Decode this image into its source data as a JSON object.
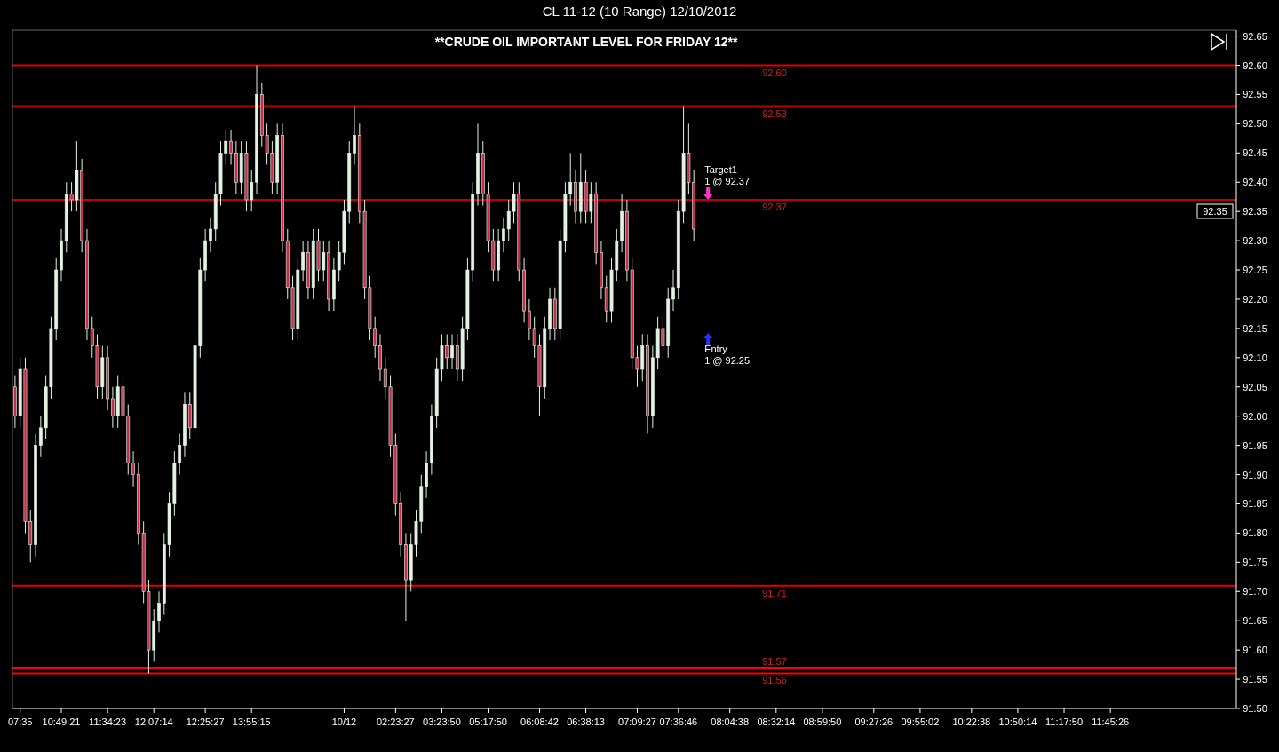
{
  "chart_data": {
    "type": "candlestick",
    "title": "CL 11-12 (10 Range)  12/10/2012",
    "subtitle": "**CRUDE OIL IMPORTANT LEVEL FOR FRIDAY 12**",
    "categories": [
      null,
      "07:35",
      null,
      null,
      null,
      null,
      null,
      null,
      null,
      "10:49:21",
      null,
      null,
      null,
      null,
      null,
      null,
      null,
      null,
      "11:34:23",
      null,
      null,
      null,
      null,
      null,
      null,
      null,
      null,
      "12:07:14",
      null,
      null,
      null,
      null,
      null,
      null,
      null,
      null,
      null,
      "12:25:27",
      null,
      null,
      null,
      null,
      null,
      null,
      null,
      null,
      "13:55:15",
      null,
      null,
      null,
      null,
      null,
      null,
      null,
      null,
      null,
      null,
      null,
      null,
      null,
      null,
      null,
      null,
      null,
      "10/12",
      null,
      null,
      null,
      null,
      null,
      null,
      null,
      null,
      null,
      "02:23:27",
      null,
      null,
      null,
      null,
      null,
      null,
      null,
      null,
      "03:23:50",
      null,
      null,
      null,
      null,
      null,
      null,
      null,
      null,
      "05:17:50",
      null,
      null,
      null,
      null,
      null,
      null,
      null,
      null,
      null,
      "06:08:42",
      null,
      null,
      null,
      null,
      null,
      null,
      null,
      null,
      "06:38:13",
      null,
      null,
      null,
      null,
      null,
      null,
      null,
      null,
      null,
      "07:09:27",
      null,
      null,
      null,
      null,
      null,
      null,
      null,
      "07:36:46",
      null,
      null,
      null,
      null,
      null,
      null,
      null,
      null,
      null,
      "08:04:38",
      null,
      null,
      null,
      null,
      null,
      null,
      null,
      null,
      "08:32:14",
      null,
      null,
      null,
      null,
      null,
      null,
      null,
      null,
      "08:59:50",
      null,
      null,
      null,
      null,
      null,
      null,
      null,
      null,
      null,
      "09:27:26",
      null,
      null,
      null,
      null,
      null,
      null,
      null,
      null,
      "09:55:02",
      null,
      null,
      null,
      null,
      null,
      null,
      null,
      null,
      null,
      "10:22:38",
      null,
      null,
      null,
      null,
      null,
      null,
      null,
      null,
      "10:50:14",
      null,
      null,
      null,
      null,
      null,
      null,
      null,
      null,
      "11:17:50",
      null,
      null,
      null,
      null,
      null,
      null,
      null,
      null,
      "11:45:26",
      null,
      null,
      null,
      null,
      null,
      null,
      null,
      null,
      null,
      null,
      null,
      null,
      null,
      null,
      null,
      null,
      null,
      null,
      null,
      null,
      null,
      null,
      null,
      null
    ],
    "ohlc": [
      [
        92.05,
        92.07,
        91.98,
        92.0
      ],
      [
        92.0,
        92.1,
        91.98,
        92.08
      ],
      [
        92.08,
        92.1,
        91.8,
        91.82
      ],
      [
        91.82,
        91.84,
        91.75,
        91.78
      ],
      [
        91.78,
        91.97,
        91.76,
        91.95
      ],
      [
        91.95,
        92.0,
        91.93,
        91.98
      ],
      [
        91.98,
        92.07,
        91.96,
        92.05
      ],
      [
        92.05,
        92.17,
        92.03,
        92.15
      ],
      [
        92.15,
        92.27,
        92.13,
        92.25
      ],
      [
        92.25,
        92.32,
        92.23,
        92.3
      ],
      [
        92.3,
        92.4,
        92.28,
        92.38
      ],
      [
        92.38,
        92.4,
        92.35,
        92.37
      ],
      [
        92.37,
        92.47,
        92.35,
        92.42
      ],
      [
        92.42,
        92.44,
        92.28,
        92.3
      ],
      [
        92.3,
        92.32,
        92.13,
        92.15
      ],
      [
        92.15,
        92.17,
        92.1,
        92.12
      ],
      [
        92.12,
        92.14,
        92.03,
        92.05
      ],
      [
        92.05,
        92.12,
        92.03,
        92.1
      ],
      [
        92.1,
        92.12,
        92.01,
        92.03
      ],
      [
        92.03,
        92.05,
        91.98,
        92.0
      ],
      [
        92.0,
        92.07,
        91.98,
        92.05
      ],
      [
        92.05,
        92.07,
        91.98,
        92.0
      ],
      [
        92.0,
        92.02,
        91.9,
        91.92
      ],
      [
        91.92,
        91.94,
        91.88,
        91.9
      ],
      [
        91.9,
        91.92,
        91.78,
        91.8
      ],
      [
        91.8,
        91.82,
        91.68,
        91.7
      ],
      [
        91.7,
        91.72,
        91.56,
        91.6
      ],
      [
        91.6,
        91.67,
        91.58,
        91.65
      ],
      [
        91.65,
        91.7,
        91.63,
        91.68
      ],
      [
        91.68,
        91.8,
        91.66,
        91.78
      ],
      [
        91.78,
        91.87,
        91.76,
        91.85
      ],
      [
        91.85,
        91.94,
        91.83,
        91.92
      ],
      [
        91.92,
        91.97,
        91.9,
        91.95
      ],
      [
        91.95,
        92.04,
        91.93,
        92.02
      ],
      [
        92.02,
        92.04,
        91.96,
        91.98
      ],
      [
        91.98,
        92.14,
        91.96,
        92.12
      ],
      [
        92.12,
        92.27,
        92.1,
        92.25
      ],
      [
        92.25,
        92.32,
        92.23,
        92.3
      ],
      [
        92.3,
        92.34,
        92.28,
        92.32
      ],
      [
        92.32,
        92.4,
        92.3,
        92.38
      ],
      [
        92.38,
        92.47,
        92.36,
        92.45
      ],
      [
        92.45,
        92.49,
        92.43,
        92.47
      ],
      [
        92.47,
        92.49,
        92.43,
        92.45
      ],
      [
        92.45,
        92.47,
        92.38,
        92.4
      ],
      [
        92.4,
        92.47,
        92.38,
        92.45
      ],
      [
        92.45,
        92.47,
        92.35,
        92.37
      ],
      [
        92.37,
        92.42,
        92.35,
        92.4
      ],
      [
        92.4,
        92.6,
        92.38,
        92.55
      ],
      [
        92.55,
        92.57,
        92.46,
        92.48
      ],
      [
        92.48,
        92.5,
        92.43,
        92.45
      ],
      [
        92.45,
        92.47,
        92.38,
        92.4
      ],
      [
        92.4,
        92.5,
        92.38,
        92.48
      ],
      [
        92.48,
        92.5,
        92.28,
        92.3
      ],
      [
        92.3,
        92.32,
        92.2,
        92.22
      ],
      [
        92.22,
        92.24,
        92.13,
        92.15
      ],
      [
        92.15,
        92.27,
        92.13,
        92.25
      ],
      [
        92.25,
        92.3,
        92.23,
        92.28
      ],
      [
        92.28,
        92.3,
        92.2,
        92.22
      ],
      [
        92.22,
        92.32,
        92.2,
        92.3
      ],
      [
        92.3,
        92.32,
        92.23,
        92.25
      ],
      [
        92.25,
        92.3,
        92.23,
        92.28
      ],
      [
        92.28,
        92.3,
        92.18,
        92.2
      ],
      [
        92.2,
        92.27,
        92.18,
        92.25
      ],
      [
        92.25,
        92.3,
        92.23,
        92.28
      ],
      [
        92.28,
        92.37,
        92.26,
        92.35
      ],
      [
        92.35,
        92.47,
        92.33,
        92.45
      ],
      [
        92.45,
        92.53,
        92.43,
        92.48
      ],
      [
        92.48,
        92.5,
        92.33,
        92.35
      ],
      [
        92.35,
        92.37,
        92.2,
        92.22
      ],
      [
        92.22,
        92.24,
        92.13,
        92.15
      ],
      [
        92.15,
        92.17,
        92.1,
        92.12
      ],
      [
        92.12,
        92.14,
        92.06,
        92.08
      ],
      [
        92.08,
        92.1,
        92.03,
        92.05
      ],
      [
        92.05,
        92.07,
        91.93,
        91.95
      ],
      [
        91.95,
        91.97,
        91.83,
        91.85
      ],
      [
        91.85,
        91.87,
        91.76,
        91.78
      ],
      [
        91.78,
        91.8,
        91.65,
        91.72
      ],
      [
        91.72,
        91.8,
        91.7,
        91.78
      ],
      [
        91.78,
        91.84,
        91.76,
        91.82
      ],
      [
        91.82,
        91.9,
        91.8,
        91.88
      ],
      [
        91.88,
        91.94,
        91.86,
        91.92
      ],
      [
        91.92,
        92.02,
        91.9,
        92.0
      ],
      [
        92.0,
        92.1,
        91.98,
        92.08
      ],
      [
        92.08,
        92.14,
        92.06,
        92.12
      ],
      [
        92.12,
        92.14,
        92.08,
        92.1
      ],
      [
        92.1,
        92.14,
        92.08,
        92.12
      ],
      [
        92.12,
        92.14,
        92.06,
        92.08
      ],
      [
        92.08,
        92.17,
        92.06,
        92.15
      ],
      [
        92.15,
        92.27,
        92.13,
        92.25
      ],
      [
        92.25,
        92.4,
        92.23,
        92.38
      ],
      [
        92.38,
        92.5,
        92.36,
        92.45
      ],
      [
        92.45,
        92.47,
        92.36,
        92.38
      ],
      [
        92.38,
        92.4,
        92.28,
        92.3
      ],
      [
        92.3,
        92.32,
        92.23,
        92.25
      ],
      [
        92.25,
        92.32,
        92.23,
        92.3
      ],
      [
        92.3,
        92.34,
        92.28,
        92.32
      ],
      [
        92.32,
        92.37,
        92.3,
        92.35
      ],
      [
        92.35,
        92.4,
        92.33,
        92.38
      ],
      [
        92.38,
        92.4,
        92.23,
        92.25
      ],
      [
        92.25,
        92.27,
        92.16,
        92.18
      ],
      [
        92.18,
        92.2,
        92.13,
        92.15
      ],
      [
        92.15,
        92.17,
        92.1,
        92.12
      ],
      [
        92.12,
        92.14,
        92.0,
        92.05
      ],
      [
        92.05,
        92.17,
        92.03,
        92.15
      ],
      [
        92.15,
        92.22,
        92.13,
        92.2
      ],
      [
        92.2,
        92.22,
        92.13,
        92.15
      ],
      [
        92.15,
        92.32,
        92.13,
        92.3
      ],
      [
        92.3,
        92.4,
        92.28,
        92.38
      ],
      [
        92.38,
        92.45,
        92.36,
        92.4
      ],
      [
        92.4,
        92.42,
        92.33,
        92.35
      ],
      [
        92.35,
        92.45,
        92.33,
        92.4
      ],
      [
        92.4,
        92.42,
        92.33,
        92.35
      ],
      [
        92.35,
        92.4,
        92.33,
        92.38
      ],
      [
        92.38,
        92.4,
        92.26,
        92.28
      ],
      [
        92.28,
        92.3,
        92.2,
        92.22
      ],
      [
        92.22,
        92.24,
        92.16,
        92.18
      ],
      [
        92.18,
        92.27,
        92.16,
        92.25
      ],
      [
        92.25,
        92.32,
        92.23,
        92.3
      ],
      [
        92.3,
        92.38,
        92.28,
        92.35
      ],
      [
        92.35,
        92.37,
        92.23,
        92.25
      ],
      [
        92.25,
        92.27,
        92.08,
        92.1
      ],
      [
        92.1,
        92.12,
        92.05,
        92.08
      ],
      [
        92.08,
        92.14,
        92.06,
        92.12
      ],
      [
        92.12,
        92.14,
        91.97,
        92.0
      ],
      [
        92.0,
        92.12,
        91.98,
        92.1
      ],
      [
        92.1,
        92.17,
        92.08,
        92.15
      ],
      [
        92.15,
        92.17,
        92.1,
        92.12
      ],
      [
        92.12,
        92.22,
        92.1,
        92.2
      ],
      [
        92.2,
        92.25,
        92.18,
        92.22
      ],
      [
        92.22,
        92.37,
        92.2,
        92.35
      ],
      [
        92.35,
        92.53,
        92.33,
        92.45
      ],
      [
        92.45,
        92.5,
        92.38,
        92.4
      ],
      [
        92.4,
        92.42,
        92.3,
        92.32
      ],
      null,
      null,
      null,
      null,
      null,
      null,
      null,
      null,
      null,
      null,
      null,
      null,
      null,
      null,
      null,
      null,
      null,
      null,
      null,
      null,
      null,
      null,
      null,
      null,
      null,
      null,
      null,
      null,
      null,
      null,
      null,
      null,
      null,
      null,
      null,
      null,
      null,
      null,
      null,
      null,
      null,
      null,
      null,
      null,
      null,
      null,
      null,
      null,
      null,
      null,
      null,
      null,
      null,
      null,
      null,
      null,
      null,
      null,
      null,
      null,
      null,
      null,
      null,
      null,
      null,
      null,
      null,
      null,
      null,
      null,
      null,
      null,
      null,
      null,
      null,
      null,
      null,
      null,
      null,
      null,
      null,
      null,
      null,
      null,
      null,
      null,
      null,
      null,
      null,
      null,
      null,
      null,
      null,
      null,
      null,
      null,
      null,
      null,
      null,
      null,
      null,
      null,
      null,
      null,
      null
    ],
    "ylim": [
      91.5,
      92.66
    ],
    "yticks": [
      {
        "value": 91.5,
        "label": "91.50"
      },
      {
        "value": 91.55,
        "label": "91.55"
      },
      {
        "value": 91.6,
        "label": "91.60"
      },
      {
        "value": 91.65,
        "label": "91.65"
      },
      {
        "value": 91.7,
        "label": "91.70"
      },
      {
        "value": 91.75,
        "label": "91.75"
      },
      {
        "value": 91.8,
        "label": "91.80"
      },
      {
        "value": 91.85,
        "label": "91.85"
      },
      {
        "value": 91.9,
        "label": "91.90"
      },
      {
        "value": 91.95,
        "label": "91.95"
      },
      {
        "value": 92.0,
        "label": "92.00"
      },
      {
        "value": 92.05,
        "label": "92.05"
      },
      {
        "value": 92.1,
        "label": "92.10"
      },
      {
        "value": 92.15,
        "label": "92.15"
      },
      {
        "value": 92.2,
        "label": "92.20"
      },
      {
        "value": 92.25,
        "label": "92.25"
      },
      {
        "value": 92.3,
        "label": "92.30"
      },
      {
        "value": 92.35,
        "label": "92.35"
      },
      {
        "value": 92.4,
        "label": "92.40"
      },
      {
        "value": 92.45,
        "label": "92.45"
      },
      {
        "value": 92.5,
        "label": "92.50"
      },
      {
        "value": 92.55,
        "label": "92.55"
      },
      {
        "value": 92.6,
        "label": "92.60"
      },
      {
        "value": 92.65,
        "label": "92.65"
      }
    ],
    "ref_lines": [
      {
        "axis": "y",
        "value": 92.6,
        "label": "92.60",
        "color": "#e00000"
      },
      {
        "axis": "y",
        "value": 92.53,
        "label": "92.53",
        "color": "#c00000"
      },
      {
        "axis": "y",
        "value": 92.37,
        "label": "92.37",
        "color": "#c00000"
      },
      {
        "axis": "y",
        "value": 91.71,
        "label": "91.71",
        "color": "#e00000"
      },
      {
        "axis": "y",
        "value": 91.57,
        "label": "91.57",
        "color": "#ff0000"
      },
      {
        "axis": "y",
        "value": 91.56,
        "label": "91.56",
        "color": "#ff0000"
      }
    ],
    "annotations": [
      {
        "text": "Target1\n1 @ 92.37",
        "y": 92.37
      },
      "Entry\n1 @ 92.25",
      "92.35"
    ],
    "grid": false,
    "legend": false
  }
}
